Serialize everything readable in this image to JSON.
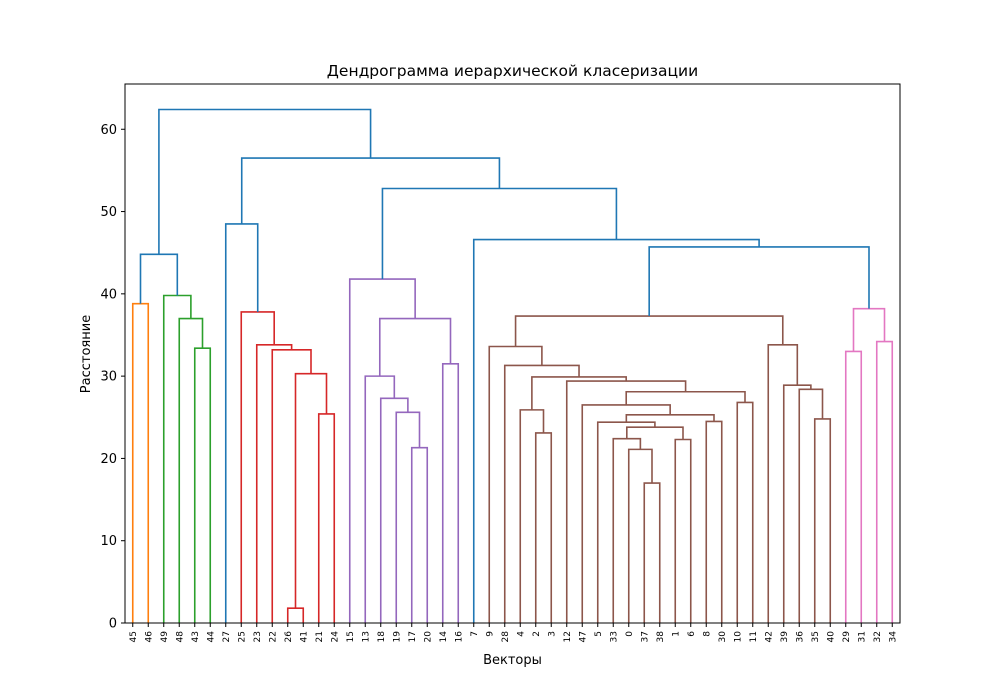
{
  "chart_data": {
    "type": "dendrogram",
    "title": "Дендрограмма иерархической класеризации",
    "xlabel": "Векторы",
    "ylabel": "Расстояние",
    "ylim": [
      0,
      65.5
    ],
    "yticks": [
      0,
      10,
      20,
      30,
      40,
      50,
      60
    ],
    "leaves": [
      "45",
      "46",
      "49",
      "48",
      "43",
      "44",
      "27",
      "25",
      "23",
      "22",
      "26",
      "41",
      "21",
      "24",
      "15",
      "13",
      "18",
      "19",
      "17",
      "20",
      "14",
      "16",
      "7",
      "9",
      "28",
      "4",
      "2",
      "3",
      "12",
      "47",
      "5",
      "33",
      "0",
      "37",
      "38",
      "1",
      "6",
      "8",
      "30",
      "10",
      "11",
      "42",
      "39",
      "36",
      "35",
      "40",
      "29",
      "31",
      "32",
      "34"
    ],
    "colors": {
      "above_threshold": "#1f77b4",
      "C1": "#ff7f0e",
      "C2": "#2ca02c",
      "C3": "#d62728",
      "C4": "#9467bd",
      "C5": "#8c564b",
      "C6": "#e377c2"
    },
    "merges": [
      {
        "l": "45",
        "r": "46",
        "h": 38.8,
        "c": "C1",
        "id": "A"
      },
      {
        "l": "43",
        "r": "44",
        "h": 33.4,
        "c": "C2",
        "id": "B1"
      },
      {
        "l": "48",
        "r": "B1",
        "h": 37.0,
        "c": "C2",
        "id": "B2"
      },
      {
        "l": "49",
        "r": "B2",
        "h": 39.8,
        "c": "C2",
        "id": "B3"
      },
      {
        "l": "A",
        "r": "B3",
        "h": 44.8,
        "c": "above_threshold",
        "id": "G1"
      },
      {
        "l": "26",
        "r": "41",
        "h": 1.8,
        "c": "C3",
        "id": "R1"
      },
      {
        "l": "21",
        "r": "24",
        "h": 25.4,
        "c": "C3",
        "id": "R2"
      },
      {
        "l": "R1",
        "r": "R2",
        "h": 30.3,
        "c": "C3",
        "id": "R3"
      },
      {
        "l": "22",
        "r": "R3",
        "h": 33.2,
        "c": "C3",
        "id": "R4"
      },
      {
        "l": "23",
        "r": "R4",
        "h": 33.8,
        "c": "C3",
        "id": "R5"
      },
      {
        "l": "25",
        "r": "R5",
        "h": 37.8,
        "c": "C3",
        "id": "R6"
      },
      {
        "l": "27",
        "r": "R6",
        "h": 48.5,
        "c": "above_threshold",
        "id": "G2"
      },
      {
        "l": "17",
        "r": "20",
        "h": 21.3,
        "c": "C4",
        "id": "P1"
      },
      {
        "l": "19",
        "r": "P1",
        "h": 25.6,
        "c": "C4",
        "id": "P2"
      },
      {
        "l": "18",
        "r": "P2",
        "h": 27.3,
        "c": "C4",
        "id": "P3"
      },
      {
        "l": "13",
        "r": "P3",
        "h": 30.0,
        "c": "C4",
        "id": "P4"
      },
      {
        "l": "14",
        "r": "16",
        "h": 31.5,
        "c": "C4",
        "id": "P5"
      },
      {
        "l": "P4",
        "r": "P5",
        "h": 37.0,
        "c": "C4",
        "id": "P6"
      },
      {
        "l": "15",
        "r": "P6",
        "h": 41.8,
        "c": "C4",
        "id": "P7"
      },
      {
        "l": "2",
        "r": "3",
        "h": 23.1,
        "c": "C5",
        "id": "K1"
      },
      {
        "l": "4",
        "r": "K1",
        "h": 25.9,
        "c": "C5",
        "id": "K2"
      },
      {
        "l": "37",
        "r": "38",
        "h": 17.0,
        "c": "C5",
        "id": "K3"
      },
      {
        "l": "0",
        "r": "K3",
        "h": 21.1,
        "c": "C5",
        "id": "K4"
      },
      {
        "l": "33",
        "r": "K4",
        "h": 22.4,
        "c": "C5",
        "id": "K5"
      },
      {
        "l": "1",
        "r": "6",
        "h": 22.3,
        "c": "C5",
        "id": "K6"
      },
      {
        "l": "K5",
        "r": "K6",
        "h": 23.8,
        "c": "C5",
        "id": "K7"
      },
      {
        "l": "5",
        "r": "K7",
        "h": 24.4,
        "c": "C5",
        "id": "K8"
      },
      {
        "l": "8",
        "r": "30",
        "h": 24.5,
        "c": "C5",
        "id": "K9"
      },
      {
        "l": "K8",
        "r": "K9",
        "h": 25.3,
        "c": "C5",
        "id": "K10"
      },
      {
        "l": "47",
        "r": "K10",
        "h": 26.5,
        "c": "C5",
        "id": "K11"
      },
      {
        "l": "10",
        "r": "11",
        "h": 26.8,
        "c": "C5",
        "id": "K12"
      },
      {
        "l": "K11",
        "r": "K12",
        "h": 28.1,
        "c": "C5",
        "id": "K13"
      },
      {
        "l": "12",
        "r": "K13",
        "h": 29.4,
        "c": "C5",
        "id": "K14"
      },
      {
        "l": "K2",
        "r": "K14",
        "h": 29.9,
        "c": "C5",
        "id": "K15"
      },
      {
        "l": "28",
        "r": "K15",
        "h": 31.3,
        "c": "C5",
        "id": "K16"
      },
      {
        "l": "9",
        "r": "K16",
        "h": 33.6,
        "c": "C5",
        "id": "K17"
      },
      {
        "l": "35",
        "r": "40",
        "h": 24.8,
        "c": "C5",
        "id": "K18"
      },
      {
        "l": "36",
        "r": "K18",
        "h": 28.4,
        "c": "C5",
        "id": "K19"
      },
      {
        "l": "39",
        "r": "K19",
        "h": 28.9,
        "c": "C5",
        "id": "K20"
      },
      {
        "l": "42",
        "r": "K20",
        "h": 33.8,
        "c": "C5",
        "id": "K21"
      },
      {
        "l": "K17",
        "r": "K21",
        "h": 37.3,
        "c": "C5",
        "id": "K22"
      },
      {
        "l": "29",
        "r": "31",
        "h": 33.0,
        "c": "C6",
        "id": "M1"
      },
      {
        "l": "32",
        "r": "34",
        "h": 34.2,
        "c": "C6",
        "id": "M2"
      },
      {
        "l": "M1",
        "r": "M2",
        "h": 38.2,
        "c": "C6",
        "id": "M3"
      },
      {
        "l": "K22",
        "r": "M3",
        "h": 45.7,
        "c": "above_threshold",
        "id": "G3"
      },
      {
        "l": "7",
        "r": "G3",
        "h": 46.6,
        "c": "above_threshold",
        "id": "G4"
      },
      {
        "l": "P7",
        "r": "G4",
        "h": 52.8,
        "c": "above_threshold",
        "id": "G5"
      },
      {
        "l": "G2",
        "r": "G5",
        "h": 56.5,
        "c": "above_threshold",
        "id": "G6"
      },
      {
        "l": "G1",
        "r": "G6",
        "h": 62.4,
        "c": "above_threshold",
        "id": "G7"
      }
    ]
  }
}
